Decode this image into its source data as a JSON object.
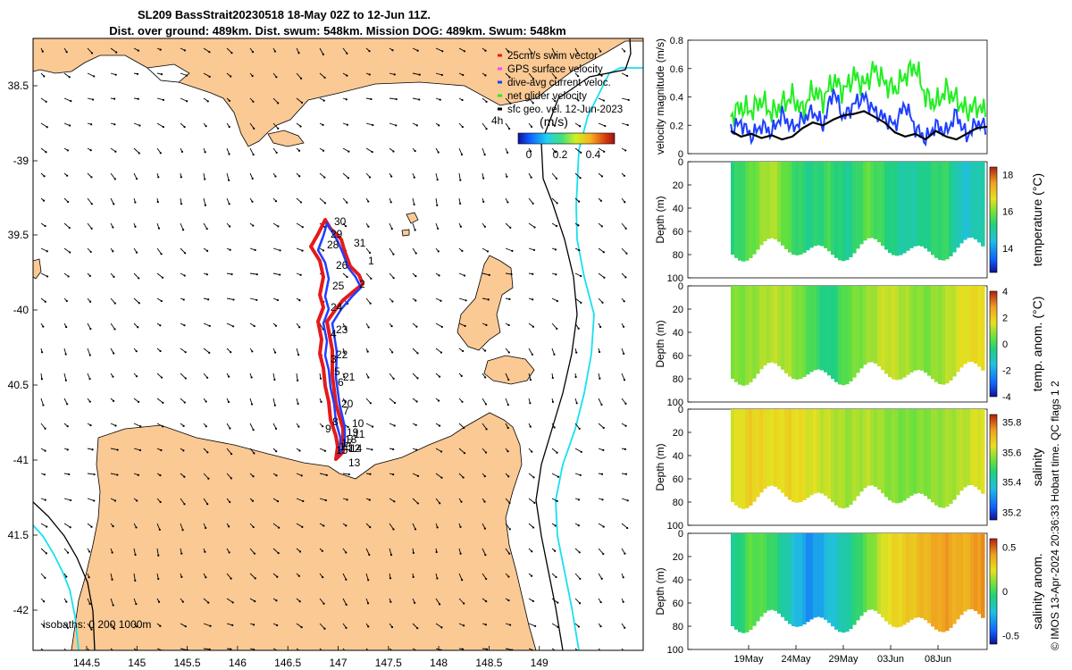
{
  "title": {
    "line1": "SL209 BassStrait20230518 18-May 02Z to 12-Jun 11Z.",
    "line2": "Dist. over ground: 489km. Dist. swum: 548km. Mission DOG: 489km. Swum: 548km"
  },
  "map": {
    "lon_ticks": [
      "144.5",
      "145",
      "145.5",
      "146",
      "146.5",
      "147",
      "147.5",
      "148",
      "148.5",
      "149"
    ],
    "lat_ticks": [
      "38.5",
      "-39",
      "39.5",
      "-40",
      "40.5",
      "-41",
      "41.5",
      "-42"
    ],
    "isobath_text": "isobaths: 0   200  1000m",
    "legend": {
      "items": [
        "25cm/s swim vector",
        "GPS surface velocity",
        "dive-avg current veloc.",
        "net glider velocity",
        "sfc geo. vel. 12-Jun-2023"
      ],
      "colors": [
        "#e41a1c",
        "#ff44ff",
        "#1f3fff",
        "#22ee22",
        "#000000"
      ],
      "scale_label": "4h",
      "colorbar_title": "(m/s)",
      "colorbar_ticks": [
        "0",
        "0.2",
        "0.4"
      ]
    },
    "waypoints": [
      "30",
      "29",
      "31",
      "28",
      "26",
      "1",
      "2",
      "25",
      "24",
      "23",
      "22",
      "4",
      "3",
      "21",
      "5",
      "6",
      "20",
      "7",
      "8",
      "9",
      "10",
      "11",
      "19",
      "18",
      "17",
      "16",
      "15",
      "14",
      "12",
      "13"
    ]
  },
  "panels": {
    "velocity": {
      "ylabel": "velocity magnitude (m/s)",
      "yticks": [
        "0",
        "0.2",
        "0.4",
        "0.6",
        "0.8"
      ]
    },
    "depth_ylabel": "Depth (m)",
    "depth_ticks": [
      "0",
      "20",
      "40",
      "60",
      "80",
      "100"
    ],
    "temperature": {
      "label": "temperature (°C)",
      "cbar_ticks": [
        "18",
        "16",
        "14"
      ]
    },
    "temp_anom": {
      "label": "temp. anom. (°C)",
      "cbar_ticks": [
        "4",
        "2",
        "0",
        "-2",
        "-4"
      ]
    },
    "salinity": {
      "label": "salinity",
      "cbar_ticks": [
        "35.8",
        "35.6",
        "35.4",
        "35.2"
      ]
    },
    "sal_anom": {
      "label": "salinity anom.",
      "cbar_ticks": [
        "0.5",
        "0",
        "-0.5"
      ]
    },
    "date_ticks": [
      "19May",
      "24May",
      "29May",
      "03Jun",
      "08Jun"
    ]
  },
  "side_note": "© IMOS 13-Apr-2024 20:36:33 Hobart time. QC flags 1  2",
  "chart_data": [
    {
      "type": "line",
      "title": "velocity magnitude (m/s)",
      "xlabel": "",
      "ylabel": "velocity magnitude (m/s)",
      "ylim": [
        0,
        0.8
      ],
      "x_days": [
        0,
        1,
        2,
        3,
        4,
        5,
        6,
        7,
        8,
        9,
        10,
        11,
        12,
        13,
        14,
        15,
        16,
        17,
        18,
        19,
        20,
        21,
        22,
        23,
        24,
        25
      ],
      "series": [
        {
          "name": "net glider velocity",
          "color": "#22ee22",
          "values": [
            0.26,
            0.33,
            0.3,
            0.38,
            0.28,
            0.35,
            0.4,
            0.3,
            0.45,
            0.38,
            0.52,
            0.44,
            0.55,
            0.48,
            0.6,
            0.5,
            0.45,
            0.55,
            0.62,
            0.4,
            0.35,
            0.45,
            0.38,
            0.3,
            0.34,
            0.28
          ]
        },
        {
          "name": "dive-avg current veloc.",
          "color": "#1f3fff",
          "values": [
            0.17,
            0.22,
            0.12,
            0.2,
            0.15,
            0.28,
            0.18,
            0.24,
            0.3,
            0.2,
            0.45,
            0.25,
            0.35,
            0.4,
            0.3,
            0.25,
            0.2,
            0.35,
            0.18,
            0.1,
            0.2,
            0.15,
            0.28,
            0.12,
            0.22,
            0.18
          ]
        },
        {
          "name": "sfc geo. vel.",
          "color": "#000000",
          "values": [
            0.16,
            0.12,
            0.14,
            0.11,
            0.13,
            0.1,
            0.12,
            0.18,
            0.22,
            0.2,
            0.24,
            0.27,
            0.28,
            0.3,
            0.26,
            0.22,
            0.15,
            0.12,
            0.14,
            0.1,
            0.16,
            0.12,
            0.1,
            0.14,
            0.18,
            0.19
          ]
        }
      ]
    },
    {
      "type": "heatmap",
      "title": "temperature (°C)",
      "ylabel": "Depth (m)",
      "ylim": [
        100,
        0
      ],
      "crange": [
        12.3,
        18.3
      ],
      "values": [
        15.0,
        15.6,
        16.2,
        15.4,
        14.9,
        15.3,
        14.8,
        15.6,
        15.1,
        14.6,
        14.9,
        15.3,
        14.2,
        14.7
      ]
    },
    {
      "type": "heatmap",
      "title": "temp. anom. (°C)",
      "ylabel": "Depth (m)",
      "ylim": [
        100,
        0
      ],
      "crange": [
        -4,
        4
      ],
      "values": [
        0.6,
        0.8,
        1.2,
        1.0,
        0.2,
        -0.6,
        0.4,
        0.8,
        1.4,
        1.0,
        0.6,
        1.0,
        1.6,
        1.8
      ]
    },
    {
      "type": "heatmap",
      "title": "salinity",
      "ylabel": "Depth (m)",
      "ylim": [
        100,
        0
      ],
      "crange": [
        35.15,
        35.85
      ],
      "values": [
        35.62,
        35.67,
        35.64,
        35.66,
        35.63,
        35.61,
        35.58,
        35.6,
        35.57,
        35.55,
        35.56,
        35.58,
        35.6,
        35.64
      ]
    },
    {
      "type": "heatmap",
      "title": "salinity anom.",
      "ylabel": "Depth (m)",
      "ylim": [
        100,
        0
      ],
      "crange": [
        -0.5,
        0.5
      ],
      "values": [
        -0.1,
        0.05,
        0.0,
        -0.15,
        -0.3,
        -0.2,
        -0.1,
        0.05,
        0.2,
        0.25,
        0.3,
        0.35,
        0.3,
        0.38
      ]
    }
  ]
}
